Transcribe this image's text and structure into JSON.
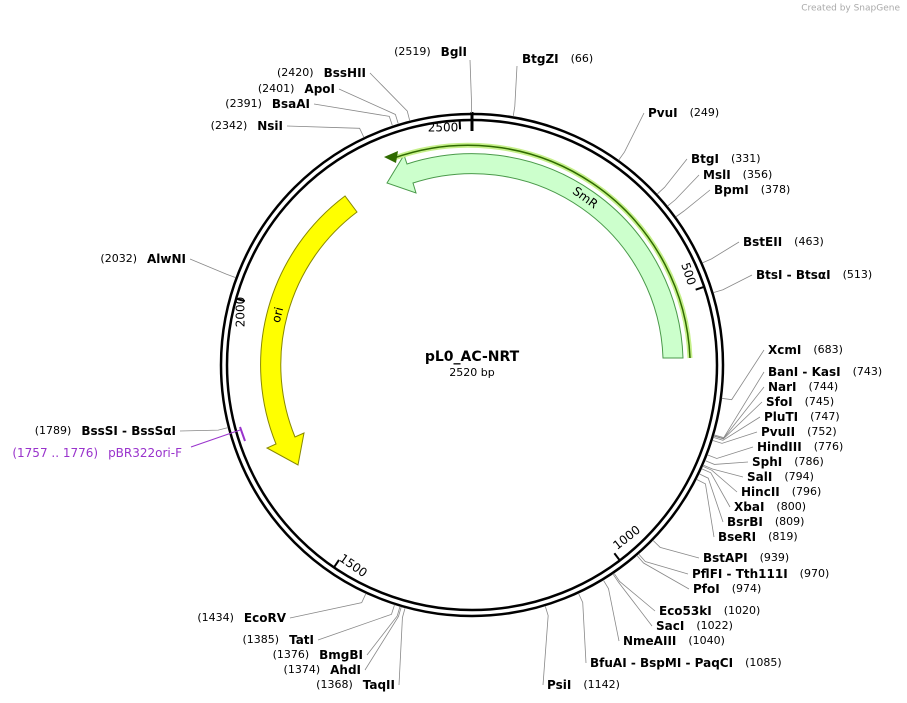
{
  "watermark": "Created by SnapGene",
  "title": "pL0_AC-NRT",
  "length": "2520 bp",
  "enzymes": [
    {
      "name": "BtgZI",
      "position": "(66)"
    },
    {
      "name": "PvuI",
      "position": "(249)"
    },
    {
      "name": "BtgI",
      "position": "(331)"
    },
    {
      "name": "MslI",
      "position": "(356)"
    },
    {
      "name": "BpmI",
      "position": "(378)"
    },
    {
      "name": "BstEII",
      "position": "(463)"
    },
    {
      "name": "BtsI - BtsαI",
      "position": "(513)"
    },
    {
      "name": "XcmI",
      "position": "(683)"
    },
    {
      "name": "BanI - KasI",
      "position": "(743)"
    },
    {
      "name": "NarI",
      "position": "(744)"
    },
    {
      "name": "SfoI",
      "position": "(745)"
    },
    {
      "name": "PluTI",
      "position": "(747)"
    },
    {
      "name": "PvuII",
      "position": "(752)"
    },
    {
      "name": "HindIII",
      "position": "(776)"
    },
    {
      "name": "SphI",
      "position": "(786)"
    },
    {
      "name": "SalI",
      "position": "(794)"
    },
    {
      "name": "HincII",
      "position": "(796)"
    },
    {
      "name": "XbaI",
      "position": "(800)"
    },
    {
      "name": "BsrBI",
      "position": "(809)"
    },
    {
      "name": "BseRI",
      "position": "(819)"
    },
    {
      "name": "BstAPI",
      "position": "(939)"
    },
    {
      "name": "PflFI - Tth111I",
      "position": "(970)"
    },
    {
      "name": "PfoI",
      "position": "(974)"
    },
    {
      "name": "Eco53kI",
      "position": "(1020)"
    },
    {
      "name": "SacI",
      "position": "(1022)"
    },
    {
      "name": "NmeAIII",
      "position": "(1040)"
    },
    {
      "name": "BfuAI - BspMI - PaqCI",
      "position": "(1085)"
    },
    {
      "name": "PsiI",
      "position": "(1142)"
    },
    {
      "name": "TaqII",
      "position": "(1368)"
    },
    {
      "name": "AhdI",
      "position": "(1374)"
    },
    {
      "name": "BmgBI",
      "position": "(1376)"
    },
    {
      "name": "TatI",
      "position": "(1385)"
    },
    {
      "name": "EcoRV",
      "position": "(1434)"
    },
    {
      "name": "BssSI - BssSαI",
      "position": "(1789)"
    },
    {
      "name": "AlwNI",
      "position": "(2032)"
    },
    {
      "name": "NsiI",
      "position": "(2342)"
    },
    {
      "name": "BsaAI",
      "position": "(2391)"
    },
    {
      "name": "ApoI",
      "position": "(2401)"
    },
    {
      "name": "BssHII",
      "position": "(2420)"
    },
    {
      "name": "BglI",
      "position": "(2519)"
    }
  ],
  "features": [
    {
      "label": "SmR"
    },
    {
      "label": "ori"
    }
  ],
  "primers": [
    {
      "range": "(1757 .. 1776)",
      "name": "pBR322ori-F"
    }
  ],
  "ruler": [
    "500",
    "1000",
    "1500",
    "2000",
    "2500"
  ]
}
